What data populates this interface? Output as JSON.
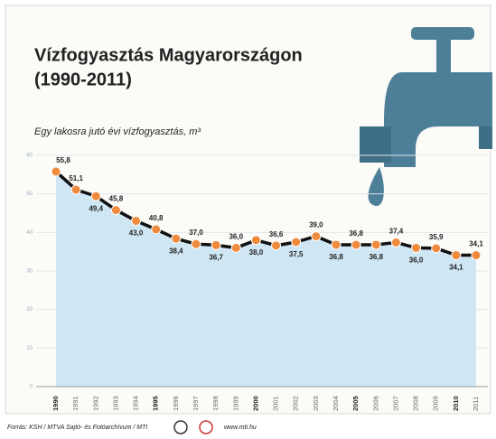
{
  "chart_data": {
    "type": "line",
    "title": "Vízfogyasztás Magyarországon",
    "subtitle": "(1990-2011)",
    "y_label": "Egy lakosra jutó évi vízfogyasztás, m³",
    "categories": [
      "1990",
      "1991",
      "1992",
      "1993",
      "1994",
      "1995",
      "1996",
      "1997",
      "1998",
      "1999",
      "2000",
      "2001",
      "2002",
      "2003",
      "2004",
      "2005",
      "2006",
      "2007",
      "2008",
      "2009",
      "2010",
      "2011"
    ],
    "values": [
      55.8,
      51.1,
      49.4,
      45.8,
      43.0,
      40.8,
      38.4,
      37.0,
      36.7,
      36.0,
      38.0,
      36.6,
      37.5,
      39.0,
      36.8,
      36.8,
      36.8,
      37.4,
      36.0,
      35.9,
      34.1,
      34.1
    ],
    "value_labels": [
      "55,8",
      "51,1",
      "49,4",
      "45,8",
      "43,0",
      "40,8",
      "38,4",
      "37,0",
      "36,7",
      "36,0",
      "38,0",
      "36,6",
      "37,5",
      "39,0",
      "36,8",
      "36,8",
      "36,8",
      "37,4",
      "36,0",
      "35,9",
      "34,1",
      "34,1"
    ],
    "color": "#f08a3c",
    "area_color": "#cfe6f4",
    "ylim": [
      0,
      60
    ],
    "yticks": [
      0,
      10,
      20,
      30,
      40,
      50,
      60
    ],
    "grid": true,
    "source": "Forrás: KSH / MTVA Sajtó- és Fotóarchívum / MTI",
    "url": "www.mti.hu"
  }
}
